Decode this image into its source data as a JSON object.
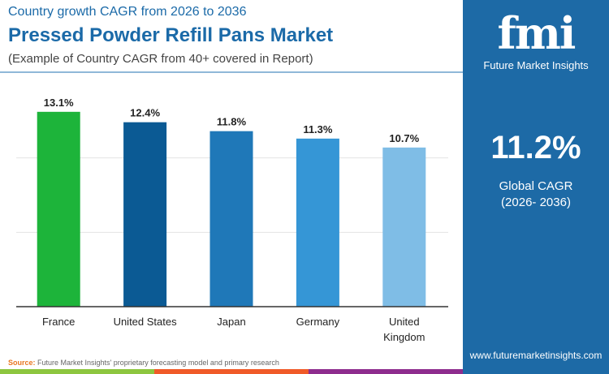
{
  "header": {
    "subtitle": "Country growth CAGR from 2026 to 2036",
    "title": "Pressed Powder Refill Pans Market",
    "note": "(Example of Country CAGR from 40+ covered in Report)"
  },
  "panel": {
    "logo": "fmi",
    "brand": "Future Market Insights",
    "value": "11.2%",
    "label": "Global CAGR",
    "period": "(2026- 2036)",
    "url": "www.futuremarketinsights.com"
  },
  "footer": {
    "source_label": "Source:",
    "source_text": " Future Market Insights' proprietary forecasting model and primary research"
  },
  "chart_data": {
    "type": "bar",
    "categories": [
      "France",
      "United States",
      "Japan",
      "Germany",
      "United Kingdom"
    ],
    "values": [
      13.1,
      12.4,
      11.8,
      11.3,
      10.7
    ],
    "labels": [
      "13.1%",
      "12.4%",
      "11.8%",
      "11.3%",
      "10.7%"
    ],
    "colors": [
      "#1db43a",
      "#0b5a94",
      "#1f78b8",
      "#3596d6",
      "#7fbde6"
    ],
    "ylim": [
      0,
      15
    ],
    "grid": true
  }
}
